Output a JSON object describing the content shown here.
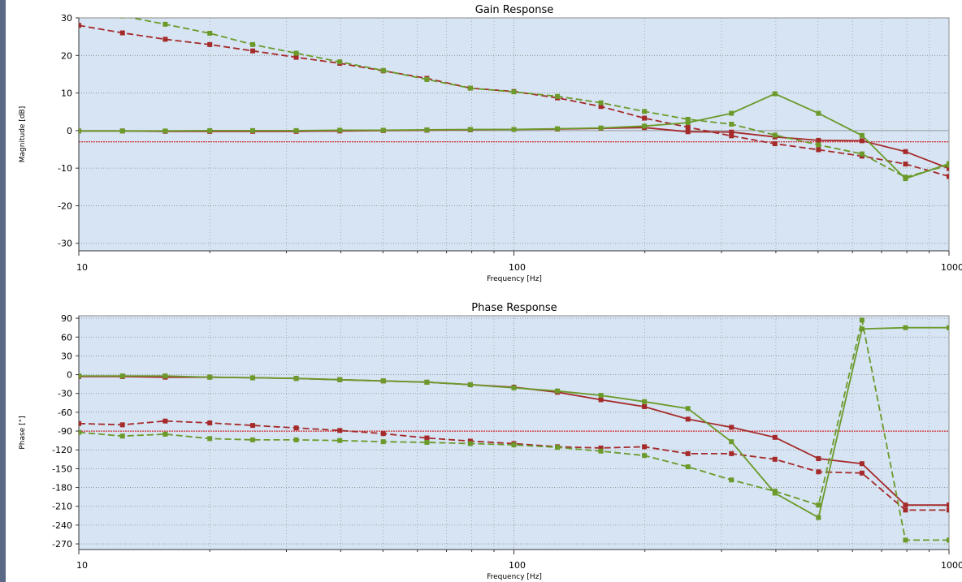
{
  "colors": {
    "plot_bg": "#d6e4f3",
    "plot_border": "#8a8a8a",
    "grid": "#8c8c8c",
    "red": "#a52a2a",
    "green": "#6b9a2a",
    "ref_line": "#cc0000",
    "zero_line": "#9a9a9a",
    "rail": "#5a6a86"
  },
  "chart_data": [
    {
      "type": "line",
      "title": "Gain Response",
      "xlabel": "Frequency [Hz]",
      "ylabel": "Magnitude [dB]",
      "xscale": "log",
      "xlim": [
        10,
        1000
      ],
      "ylim": [
        -32,
        30
      ],
      "xticks": [
        10,
        100,
        1000
      ],
      "xtick_labels": [
        "10",
        "100",
        "1000"
      ],
      "yticks": [
        30,
        20,
        10,
        0,
        -10,
        -20,
        -30
      ],
      "ytick_labels": [
        "30",
        "20",
        "10",
        "0",
        "-10",
        "-20",
        "-30"
      ],
      "grid": true,
      "reference_line": -3,
      "x": [
        10,
        12.6,
        15.8,
        20,
        25.1,
        31.6,
        39.8,
        50.1,
        63.1,
        79.4,
        100,
        125.9,
        158.5,
        199.5,
        251.2,
        316.2,
        398.1,
        501.2,
        631,
        794.3,
        1000
      ],
      "series": [
        {
          "color": "red",
          "style": "solid",
          "values": [
            -0.1,
            -0.1,
            -0.2,
            -0.2,
            -0.2,
            -0.2,
            -0.1,
            0,
            0.1,
            0.2,
            0.3,
            0.4,
            0.6,
            0.8,
            -0.3,
            -0.4,
            -1.7,
            -2.6,
            -2.7,
            -5.6,
            -10.1
          ]
        },
        {
          "color": "red",
          "style": "dashed",
          "values": [
            28,
            26,
            24.3,
            22.9,
            21.2,
            19.5,
            17.9,
            15.9,
            13.9,
            11.3,
            10.4,
            8.7,
            6.4,
            3.3,
            0.9,
            -1.4,
            -3.5,
            -5.1,
            -6.8,
            -8.9,
            -12.2
          ]
        },
        {
          "color": "green",
          "style": "solid",
          "values": [
            -0.1,
            -0.1,
            -0.1,
            0,
            0,
            0,
            0.1,
            0.1,
            0.2,
            0.3,
            0.3,
            0.5,
            0.7,
            1.2,
            2.1,
            4.6,
            9.8,
            4.6,
            -1.3,
            -12.8,
            -8.8
          ]
        },
        {
          "color": "green",
          "style": "dashed",
          "values": [
            34,
            30.5,
            28.3,
            25.9,
            22.9,
            20.6,
            18.3,
            16,
            13.6,
            11.3,
            10.3,
            9.1,
            7.4,
            5.1,
            3,
            1.7,
            -1.2,
            -3.8,
            -6.2,
            -12.4,
            -9.2
          ]
        }
      ]
    },
    {
      "type": "line",
      "title": "Phase Response",
      "xlabel": "Frequency [Hz]",
      "ylabel": "Phase [°]",
      "xscale": "log",
      "xlim": [
        10,
        1000
      ],
      "ylim": [
        -279,
        94
      ],
      "xticks": [
        10,
        100,
        1000
      ],
      "xtick_labels": [
        "10",
        "100",
        "1000"
      ],
      "yticks": [
        90,
        60,
        30,
        0,
        -30,
        -60,
        -90,
        -120,
        -150,
        -180,
        -210,
        -240,
        -270
      ],
      "ytick_labels": [
        "90",
        "60",
        "30",
        "0",
        "-30",
        "-60",
        "-90",
        "-120",
        "-150",
        "-180",
        "-210",
        "-240",
        "-270"
      ],
      "grid": true,
      "reference_line": -90,
      "x": [
        10,
        12.6,
        15.8,
        20,
        25.1,
        31.6,
        39.8,
        50.1,
        63.1,
        79.4,
        100,
        125.9,
        158.5,
        199.5,
        251.2,
        316.2,
        398.1,
        501.2,
        631,
        794.3,
        1000
      ],
      "series": [
        {
          "color": "red",
          "style": "solid",
          "values": [
            -3,
            -3,
            -4,
            -4,
            -5,
            -6,
            -8,
            -10,
            -12,
            -16,
            -20,
            -28,
            -40,
            -51,
            -71,
            -84,
            -100,
            -134,
            -142,
            -208,
            -208
          ]
        },
        {
          "color": "red",
          "style": "dashed",
          "values": [
            -78,
            -80,
            -74,
            -77,
            -81,
            -85,
            -89,
            -94,
            -101,
            -106,
            -110,
            -115,
            -117,
            -115,
            -126,
            -126,
            -135,
            -155,
            -157,
            -216,
            -216
          ]
        },
        {
          "color": "green",
          "style": "solid",
          "values": [
            -2,
            -2,
            -2,
            -4,
            -5,
            -6,
            -8,
            -10,
            -12,
            -16,
            -21,
            -26,
            -33,
            -43,
            -54,
            -107,
            -189,
            -228,
            73,
            75,
            75
          ]
        },
        {
          "color": "green",
          "style": "dashed",
          "values": [
            -92,
            -98,
            -95,
            -102,
            -104,
            -104,
            -105,
            -107,
            -108,
            -110,
            -112,
            -116,
            -122,
            -129,
            -147,
            -168,
            -186,
            -208,
            87,
            -264,
            -264
          ]
        }
      ]
    }
  ]
}
